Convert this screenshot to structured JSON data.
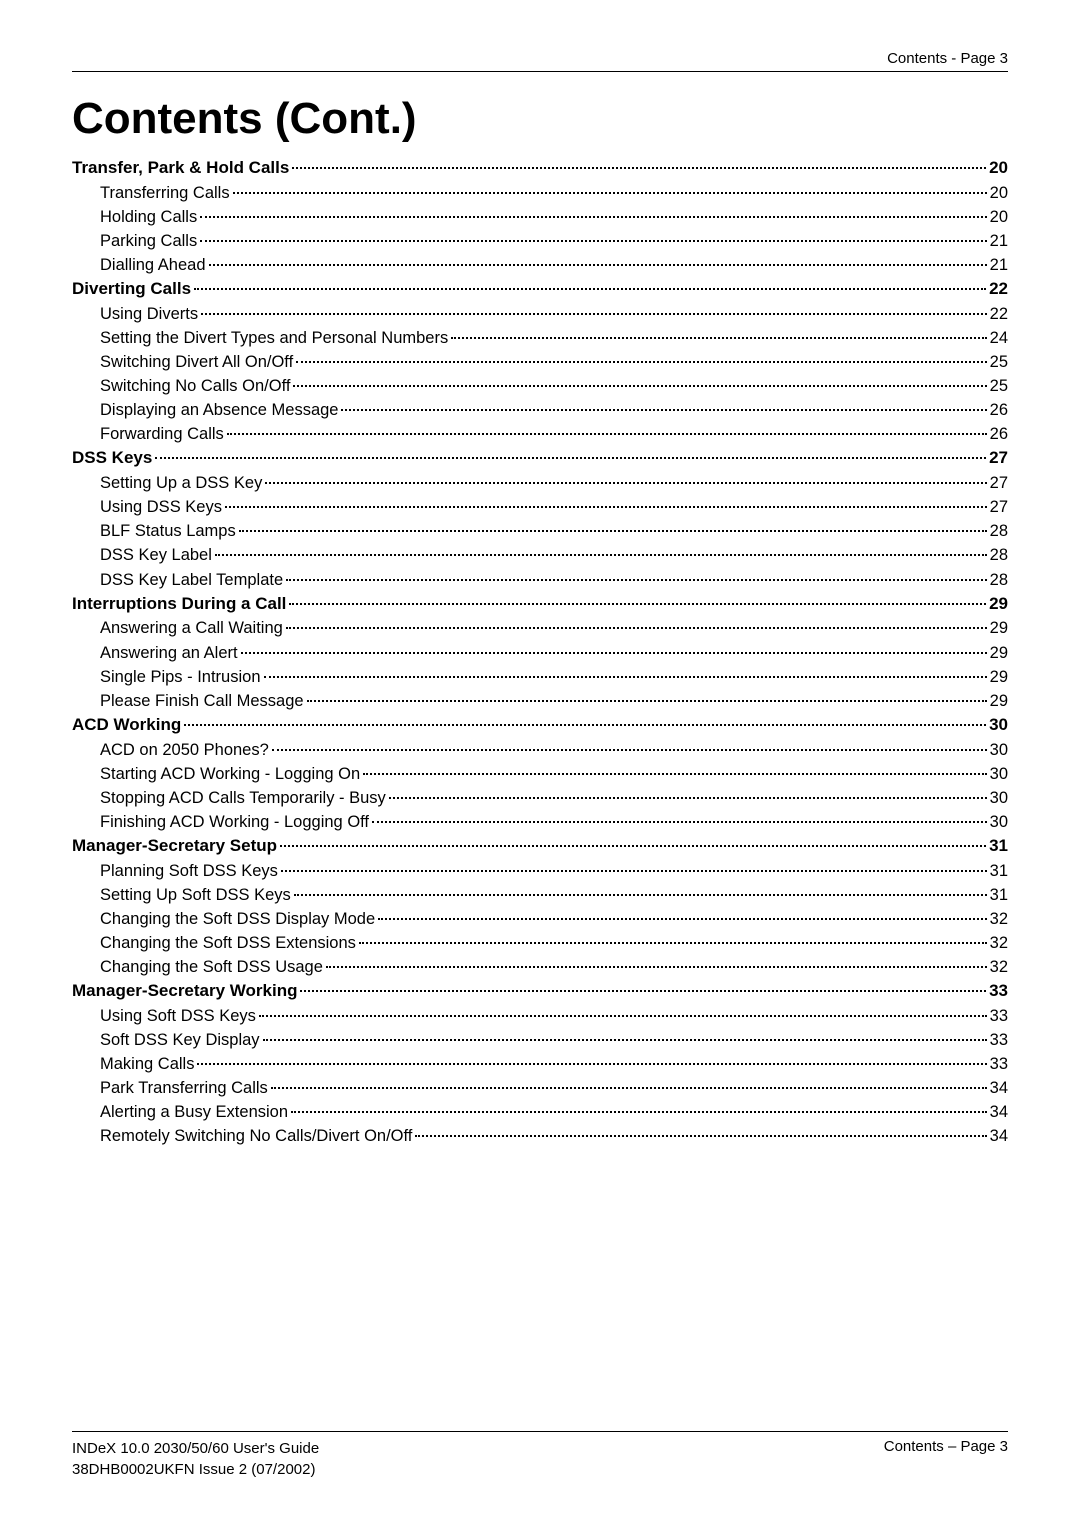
{
  "header": {
    "right_text": "Contents - Page 3"
  },
  "title": "Contents (Cont.)",
  "toc": [
    {
      "level": "section",
      "label": "Transfer, Park & Hold Calls",
      "page": "20"
    },
    {
      "level": "sub",
      "label": "Transferring Calls",
      "page": "20"
    },
    {
      "level": "sub",
      "label": "Holding Calls",
      "page": "20"
    },
    {
      "level": "sub",
      "label": "Parking Calls",
      "page": "21"
    },
    {
      "level": "sub",
      "label": "Dialling Ahead",
      "page": "21"
    },
    {
      "level": "section",
      "label": "Diverting Calls",
      "page": "22"
    },
    {
      "level": "sub",
      "label": "Using Diverts",
      "page": "22"
    },
    {
      "level": "sub",
      "label": "Setting the Divert Types and Personal Numbers",
      "page": "24"
    },
    {
      "level": "sub",
      "label": "Switching Divert All On/Off",
      "page": "25"
    },
    {
      "level": "sub",
      "label": "Switching No Calls On/Off",
      "page": "25"
    },
    {
      "level": "sub",
      "label": "Displaying an Absence Message",
      "page": "26"
    },
    {
      "level": "sub",
      "label": "Forwarding Calls",
      "page": "26"
    },
    {
      "level": "section",
      "label": "DSS Keys",
      "page": "27"
    },
    {
      "level": "sub",
      "label": "Setting Up a DSS Key",
      "page": "27"
    },
    {
      "level": "sub",
      "label": "Using DSS Keys",
      "page": "27"
    },
    {
      "level": "sub",
      "label": "BLF Status Lamps",
      "page": "28"
    },
    {
      "level": "sub",
      "label": "DSS Key Label",
      "page": "28"
    },
    {
      "level": "sub",
      "label": "DSS Key Label Template",
      "page": "28"
    },
    {
      "level": "section",
      "label": "Interruptions During a Call",
      "page": "29"
    },
    {
      "level": "sub",
      "label": "Answering a Call Waiting",
      "page": "29"
    },
    {
      "level": "sub",
      "label": "Answering an Alert",
      "page": "29"
    },
    {
      "level": "sub",
      "label": "Single Pips - Intrusion",
      "page": "29"
    },
    {
      "level": "sub",
      "label": "Please Finish Call Message",
      "page": "29"
    },
    {
      "level": "section",
      "label": "ACD Working",
      "page": "30"
    },
    {
      "level": "sub",
      "label": "ACD on 2050 Phones?",
      "page": "30"
    },
    {
      "level": "sub",
      "label": "Starting ACD Working - Logging On",
      "page": "30"
    },
    {
      "level": "sub",
      "label": "Stopping ACD Calls Temporarily - Busy",
      "page": "30"
    },
    {
      "level": "sub",
      "label": "Finishing ACD Working - Logging Off",
      "page": "30"
    },
    {
      "level": "section",
      "label": "Manager-Secretary Setup",
      "page": "31"
    },
    {
      "level": "sub",
      "label": "Planning Soft DSS Keys",
      "page": "31"
    },
    {
      "level": "sub",
      "label": "Setting Up Soft DSS Keys",
      "page": "31"
    },
    {
      "level": "sub",
      "label": "Changing the Soft DSS Display Mode",
      "page": "32"
    },
    {
      "level": "sub",
      "label": "Changing the Soft DSS Extensions",
      "page": "32"
    },
    {
      "level": "sub",
      "label": "Changing the Soft DSS Usage",
      "page": "32"
    },
    {
      "level": "section",
      "label": "Manager-Secretary Working",
      "page": "33"
    },
    {
      "level": "sub",
      "label": "Using Soft DSS Keys",
      "page": "33"
    },
    {
      "level": "sub",
      "label": "Soft DSS Key Display",
      "page": "33"
    },
    {
      "level": "sub",
      "label": "Making Calls",
      "page": "33"
    },
    {
      "level": "sub",
      "label": "Park Transferring Calls",
      "page": "34"
    },
    {
      "level": "sub",
      "label": "Alerting a Busy Extension",
      "page": "34"
    },
    {
      "level": "sub",
      "label": "Remotely Switching No Calls/Divert On/Off",
      "page": "34"
    }
  ],
  "footer": {
    "left_line1": "INDeX 10.0 2030/50/60 User's Guide",
    "left_line2": "38DHB0002UKFN Issue 2 (07/2002)",
    "right": "Contents – Page 3"
  }
}
